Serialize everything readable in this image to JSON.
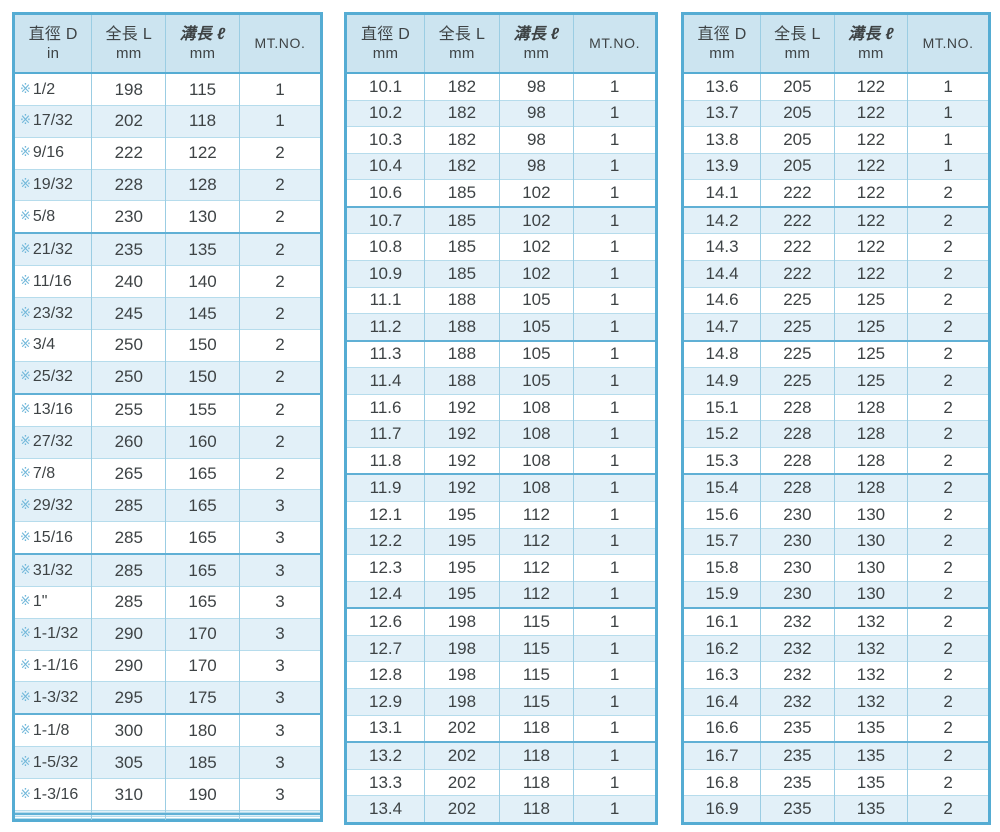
{
  "palette": {
    "frame": "#55acd3",
    "header_bg": "#cce4f0",
    "stripe_bg": "#e2f0f8",
    "row_line": "#b6dcec",
    "group_line": "#60b0d5",
    "column_line": "#9bcde3",
    "text": "#3e4345",
    "marker": "#72b8da"
  },
  "tables": [
    {
      "name": "inch-size-table",
      "header": {
        "c1a": "直徑 D",
        "c1b": "in",
        "c2a": "全長 L",
        "c2b": "mm",
        "c3a": "溝長 ℓ",
        "c3b": "mm",
        "c4": "MT.NO."
      },
      "marker": "※",
      "rows": [
        [
          "1/2",
          "198",
          "115",
          "1"
        ],
        [
          "17/32",
          "202",
          "118",
          "1"
        ],
        [
          "9/16",
          "222",
          "122",
          "2"
        ],
        [
          "19/32",
          "228",
          "128",
          "2"
        ],
        [
          "5/8",
          "230",
          "130",
          "2"
        ],
        [
          "21/32",
          "235",
          "135",
          "2"
        ],
        [
          "11/16",
          "240",
          "140",
          "2"
        ],
        [
          "23/32",
          "245",
          "145",
          "2"
        ],
        [
          "3/4",
          "250",
          "150",
          "2"
        ],
        [
          "25/32",
          "250",
          "150",
          "2"
        ],
        [
          "13/16",
          "255",
          "155",
          "2"
        ],
        [
          "27/32",
          "260",
          "160",
          "2"
        ],
        [
          "7/8",
          "265",
          "165",
          "2"
        ],
        [
          "29/32",
          "285",
          "165",
          "3"
        ],
        [
          "15/16",
          "285",
          "165",
          "3"
        ],
        [
          "31/32",
          "285",
          "165",
          "3"
        ],
        [
          "1\"",
          "285",
          "165",
          "3"
        ],
        [
          "1-1/32",
          "290",
          "170",
          "3"
        ],
        [
          "1-1/16",
          "290",
          "170",
          "3"
        ],
        [
          "1-3/32",
          "295",
          "175",
          "3"
        ],
        [
          "1-1/8",
          "300",
          "180",
          "3"
        ],
        [
          "1-5/32",
          "305",
          "185",
          "3"
        ],
        [
          "1-3/16",
          "310",
          "190",
          "3"
        ],
        [
          "",
          "",
          "",
          ""
        ],
        [
          "",
          "",
          "",
          ""
        ],
        [
          "",
          "",
          "",
          ""
        ],
        [
          "",
          "",
          "",
          ""
        ],
        [
          "",
          "",
          "",
          ""
        ]
      ]
    },
    {
      "name": "metric-size-table-1",
      "header": {
        "c1a": "直徑 D",
        "c1b": "mm",
        "c2a": "全長 L",
        "c2b": "mm",
        "c3a": "溝長 ℓ",
        "c3b": "mm",
        "c4": "MT.NO."
      },
      "marker": "",
      "rows": [
        [
          "10.1",
          "182",
          "98",
          "1"
        ],
        [
          "10.2",
          "182",
          "98",
          "1"
        ],
        [
          "10.3",
          "182",
          "98",
          "1"
        ],
        [
          "10.4",
          "182",
          "98",
          "1"
        ],
        [
          "10.6",
          "185",
          "102",
          "1"
        ],
        [
          "10.7",
          "185",
          "102",
          "1"
        ],
        [
          "10.8",
          "185",
          "102",
          "1"
        ],
        [
          "10.9",
          "185",
          "102",
          "1"
        ],
        [
          "11.1",
          "188",
          "105",
          "1"
        ],
        [
          "11.2",
          "188",
          "105",
          "1"
        ],
        [
          "11.3",
          "188",
          "105",
          "1"
        ],
        [
          "11.4",
          "188",
          "105",
          "1"
        ],
        [
          "11.6",
          "192",
          "108",
          "1"
        ],
        [
          "11.7",
          "192",
          "108",
          "1"
        ],
        [
          "11.8",
          "192",
          "108",
          "1"
        ],
        [
          "11.9",
          "192",
          "108",
          "1"
        ],
        [
          "12.1",
          "195",
          "112",
          "1"
        ],
        [
          "12.2",
          "195",
          "112",
          "1"
        ],
        [
          "12.3",
          "195",
          "112",
          "1"
        ],
        [
          "12.4",
          "195",
          "112",
          "1"
        ],
        [
          "12.6",
          "198",
          "115",
          "1"
        ],
        [
          "12.7",
          "198",
          "115",
          "1"
        ],
        [
          "12.8",
          "198",
          "115",
          "1"
        ],
        [
          "12.9",
          "198",
          "115",
          "1"
        ],
        [
          "13.1",
          "202",
          "118",
          "1"
        ],
        [
          "13.2",
          "202",
          "118",
          "1"
        ],
        [
          "13.3",
          "202",
          "118",
          "1"
        ],
        [
          "13.4",
          "202",
          "118",
          "1"
        ]
      ]
    },
    {
      "name": "metric-size-table-2",
      "header": {
        "c1a": "直徑 D",
        "c1b": "mm",
        "c2a": "全長 L",
        "c2b": "mm",
        "c3a": "溝長 ℓ",
        "c3b": "mm",
        "c4": "MT.NO."
      },
      "marker": "",
      "rows": [
        [
          "13.6",
          "205",
          "122",
          "1"
        ],
        [
          "13.7",
          "205",
          "122",
          "1"
        ],
        [
          "13.8",
          "205",
          "122",
          "1"
        ],
        [
          "13.9",
          "205",
          "122",
          "1"
        ],
        [
          "14.1",
          "222",
          "122",
          "2"
        ],
        [
          "14.2",
          "222",
          "122",
          "2"
        ],
        [
          "14.3",
          "222",
          "122",
          "2"
        ],
        [
          "14.4",
          "222",
          "122",
          "2"
        ],
        [
          "14.6",
          "225",
          "125",
          "2"
        ],
        [
          "14.7",
          "225",
          "125",
          "2"
        ],
        [
          "14.8",
          "225",
          "125",
          "2"
        ],
        [
          "14.9",
          "225",
          "125",
          "2"
        ],
        [
          "15.1",
          "228",
          "128",
          "2"
        ],
        [
          "15.2",
          "228",
          "128",
          "2"
        ],
        [
          "15.3",
          "228",
          "128",
          "2"
        ],
        [
          "15.4",
          "228",
          "128",
          "2"
        ],
        [
          "15.6",
          "230",
          "130",
          "2"
        ],
        [
          "15.7",
          "230",
          "130",
          "2"
        ],
        [
          "15.8",
          "230",
          "130",
          "2"
        ],
        [
          "15.9",
          "230",
          "130",
          "2"
        ],
        [
          "16.1",
          "232",
          "132",
          "2"
        ],
        [
          "16.2",
          "232",
          "132",
          "2"
        ],
        [
          "16.3",
          "232",
          "132",
          "2"
        ],
        [
          "16.4",
          "232",
          "132",
          "2"
        ],
        [
          "16.6",
          "235",
          "135",
          "2"
        ],
        [
          "16.7",
          "235",
          "135",
          "2"
        ],
        [
          "16.8",
          "235",
          "135",
          "2"
        ],
        [
          "16.9",
          "235",
          "135",
          "2"
        ]
      ]
    }
  ]
}
